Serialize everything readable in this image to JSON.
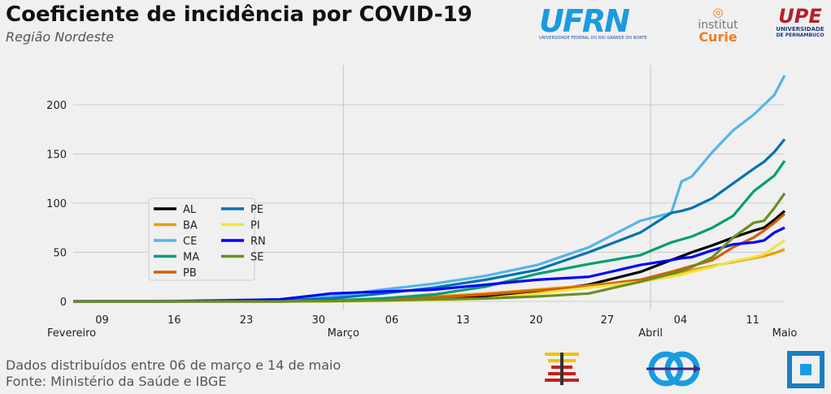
{
  "header": {
    "title": "Coeficiente de incidência por COVID-19",
    "subtitle": "Região Nordeste"
  },
  "logos": {
    "ufrn": "UFRN",
    "ufrn_sub": "UNIVERSIDADE FEDERAL DO RIO GRANDE DO NORTE",
    "curie_1": "institut",
    "curie_2": "Curie",
    "upe": "UPE",
    "upe_sub1": "UNIVERSIDADE",
    "upe_sub2": "DE PERNAMBUCO"
  },
  "footer": {
    "line1": "Dados distribuídos entre 06 de março e 14 de maio",
    "line2": "Fonte: Ministério da Saúde e IBGE"
  },
  "chart_data": {
    "type": "line",
    "title": "Coeficiente de incidência por COVID-19",
    "xlabel": "",
    "ylabel": "",
    "ylim": [
      0,
      235
    ],
    "yticks": [
      0,
      50,
      100,
      150,
      200
    ],
    "grid": true,
    "legend_placement": "center-left",
    "xticks": [
      {
        "day": 2.8,
        "label": "09"
      },
      {
        "day": 9.8,
        "label": "16"
      },
      {
        "day": 16.8,
        "label": "23"
      },
      {
        "day": 23.8,
        "label": "30"
      },
      {
        "day": 30.9,
        "label": "06"
      },
      {
        "day": 37.8,
        "label": "13"
      },
      {
        "day": 44.9,
        "label": "20"
      },
      {
        "day": 51.8,
        "label": "27"
      },
      {
        "day": 58.9,
        "label": "04"
      },
      {
        "day": 65.9,
        "label": "11"
      }
    ],
    "month_labels": [
      {
        "day": 0,
        "label": "Fevereiro"
      },
      {
        "day": 26.2,
        "label": "Março",
        "line": true
      },
      {
        "day": 56,
        "label": "Abril",
        "line": true
      },
      {
        "day": 69,
        "label": "Maio"
      }
    ],
    "x": [
      0,
      10,
      20,
      25,
      30,
      35,
      40,
      45,
      50,
      55,
      58,
      59,
      60,
      62,
      64,
      66,
      67,
      68,
      69
    ],
    "series": [
      {
        "name": "AL",
        "color": "#000000",
        "values": [
          0,
          0,
          0,
          0.5,
          1,
          3,
          5,
          10,
          17,
          30,
          42,
          46,
          50,
          57,
          65,
          72,
          75,
          83,
          92
        ]
      },
      {
        "name": "BA",
        "color": "#e69f00",
        "values": [
          0,
          0,
          0.3,
          1,
          2,
          5,
          8,
          12,
          16,
          22,
          27,
          30,
          32,
          36,
          40,
          44,
          46,
          49,
          53
        ]
      },
      {
        "name": "CE",
        "color": "#56b4e9",
        "values": [
          0,
          0.5,
          2,
          5,
          12,
          18,
          26,
          37,
          55,
          82,
          90,
          122,
          127,
          152,
          174,
          190,
          200,
          210,
          230
        ]
      },
      {
        "name": "MA",
        "color": "#009e73",
        "values": [
          0,
          0,
          0.5,
          1,
          3,
          7,
          15,
          28,
          38,
          47,
          60,
          63,
          66,
          75,
          87,
          112,
          120,
          128,
          143
        ]
      },
      {
        "name": "PB",
        "color": "#d55e00",
        "values": [
          0,
          0,
          0,
          0.5,
          1,
          4,
          7,
          11,
          15,
          22,
          30,
          33,
          36,
          42,
          55,
          65,
          72,
          80,
          89
        ]
      },
      {
        "name": "PE",
        "color": "#0072b2",
        "values": [
          0,
          0.3,
          1,
          3,
          8,
          14,
          22,
          32,
          50,
          70,
          90,
          92,
          95,
          105,
          120,
          135,
          142,
          152,
          165
        ]
      },
      {
        "name": "PI",
        "color": "#f0e442",
        "values": [
          0,
          0,
          0,
          0,
          0.3,
          1,
          3,
          8,
          14,
          20,
          25,
          27,
          30,
          35,
          41,
          45,
          48,
          55,
          62
        ]
      },
      {
        "name": "RN",
        "color": "#0000ff",
        "values": [
          0,
          0,
          2,
          8,
          10,
          12,
          17,
          22,
          25,
          37,
          42,
          44,
          45,
          52,
          58,
          60,
          62,
          70,
          75
        ]
      },
      {
        "name": "SE",
        "color": "#6b8e23",
        "values": [
          0,
          0,
          0,
          0.3,
          1,
          2,
          3,
          5,
          8,
          20,
          28,
          31,
          35,
          45,
          65,
          80,
          82,
          95,
          110
        ]
      }
    ]
  }
}
